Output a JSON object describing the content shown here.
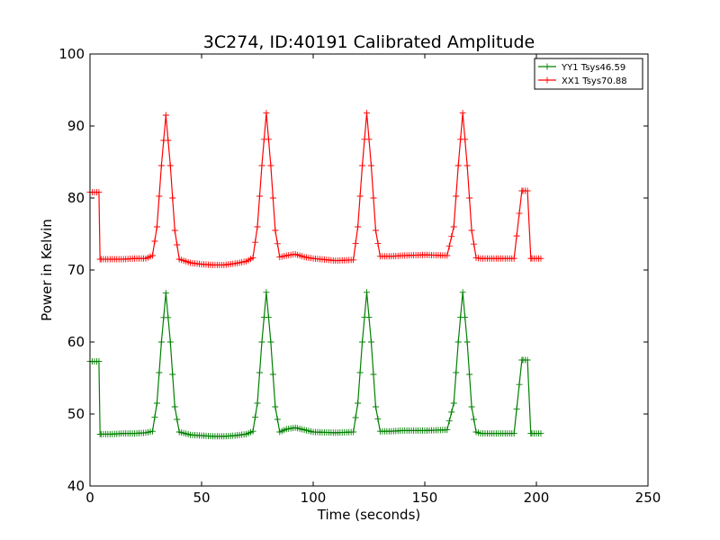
{
  "chart_data": {
    "type": "line",
    "title": "3C274, ID:40191 Calibrated Amplitude",
    "xlabel": "Time (seconds)",
    "ylabel": "Power in Kelvin",
    "xlim": [
      0,
      250
    ],
    "ylim": [
      40,
      100
    ],
    "xticks": [
      "0",
      "50",
      "100",
      "150",
      "200",
      "250"
    ],
    "yticks": [
      "40",
      "50",
      "60",
      "70",
      "80",
      "90",
      "100"
    ],
    "grid": false,
    "legend_position": "top-right",
    "marker": "plus",
    "series": [
      {
        "name": "YY1 Tsys46.59",
        "color": "#008000",
        "x": [
          0,
          2,
          4,
          4.5,
          5,
          10,
          15,
          20,
          25,
          28,
          30,
          32,
          34,
          36,
          38,
          40,
          45,
          50,
          55,
          60,
          65,
          70,
          73,
          75,
          77,
          79,
          81,
          83,
          85,
          88,
          92,
          96,
          100,
          110,
          118,
          120,
          122,
          124,
          126,
          128,
          130,
          135,
          140,
          150,
          160,
          163,
          165,
          167,
          169,
          171,
          173,
          175,
          180,
          185,
          190,
          193.5,
          194,
          196,
          197.5,
          198,
          200,
          202
        ],
        "y": [
          57.3,
          57.3,
          57.3,
          47.2,
          47.2,
          47.2,
          47.3,
          47.3,
          47.4,
          47.6,
          51.5,
          60.0,
          66.8,
          60.0,
          51.0,
          47.5,
          47.1,
          47.0,
          46.9,
          46.9,
          47.0,
          47.2,
          47.6,
          51.5,
          60.0,
          66.9,
          60.0,
          51.0,
          47.5,
          47.9,
          48.1,
          47.8,
          47.5,
          47.4,
          47.5,
          51.5,
          60.0,
          66.9,
          60.0,
          51.0,
          47.6,
          47.6,
          47.7,
          47.7,
          47.8,
          51.5,
          60.0,
          66.9,
          60.0,
          51.0,
          47.5,
          47.3,
          47.3,
          47.3,
          47.3,
          57.5,
          57.5,
          57.5,
          47.3,
          47.3,
          47.3,
          47.3
        ]
      },
      {
        "name": "XX1 Tsys70.88",
        "color": "#ff0000",
        "x": [
          0,
          2,
          4,
          4.5,
          5,
          10,
          15,
          20,
          25,
          28,
          30,
          32,
          34,
          36,
          38,
          40,
          45,
          50,
          55,
          60,
          65,
          70,
          73,
          75,
          77,
          79,
          81,
          83,
          85,
          88,
          92,
          96,
          100,
          110,
          118,
          120,
          122,
          124,
          126,
          128,
          130,
          135,
          140,
          150,
          160,
          163,
          165,
          167,
          169,
          171,
          173,
          175,
          180,
          185,
          190,
          193.5,
          194,
          196,
          197.5,
          198,
          200,
          202
        ],
        "y": [
          80.8,
          80.8,
          80.8,
          71.5,
          71.5,
          71.5,
          71.5,
          71.6,
          71.6,
          72.0,
          76.0,
          84.5,
          91.5,
          84.5,
          75.5,
          71.5,
          71.0,
          70.8,
          70.7,
          70.7,
          70.9,
          71.2,
          71.7,
          76.0,
          84.5,
          91.8,
          84.5,
          75.5,
          71.8,
          72.0,
          72.2,
          71.8,
          71.6,
          71.3,
          71.4,
          76.0,
          84.5,
          91.8,
          84.5,
          75.5,
          71.9,
          71.9,
          72.0,
          72.1,
          72.0,
          76.0,
          84.5,
          91.8,
          84.5,
          75.5,
          71.7,
          71.6,
          71.6,
          71.6,
          71.6,
          81.0,
          81.0,
          81.0,
          71.6,
          71.6,
          71.6,
          71.6
        ]
      }
    ]
  }
}
